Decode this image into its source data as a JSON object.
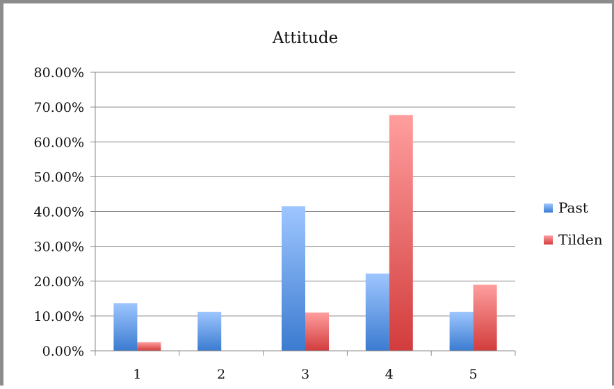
{
  "chart_data": {
    "type": "bar",
    "title": "Attitude",
    "xlabel": "",
    "ylabel": "",
    "categories": [
      "1",
      "2",
      "3",
      "4",
      "5"
    ],
    "ylim": [
      0,
      0.8
    ],
    "y_ticks": [
      0,
      0.1,
      0.2,
      0.3,
      0.4,
      0.5,
      0.6,
      0.7,
      0.8
    ],
    "y_tick_labels": [
      "0.00%",
      "10.00%",
      "20.00%",
      "30.00%",
      "40.00%",
      "50.00%",
      "60.00%",
      "70.00%",
      "80.00%"
    ],
    "grid": true,
    "legend_position": "right",
    "series": [
      {
        "name": "Past",
        "values": [
          0.137,
          0.112,
          0.415,
          0.222,
          0.112
        ],
        "color_top": "#9ec6ff",
        "color_bottom": "#3b7bd0"
      },
      {
        "name": "Tilden",
        "values": [
          0.025,
          0,
          0.11,
          0.677,
          0.19
        ],
        "color_top": "#ff9e9e",
        "color_bottom": "#d23c3c"
      }
    ]
  }
}
